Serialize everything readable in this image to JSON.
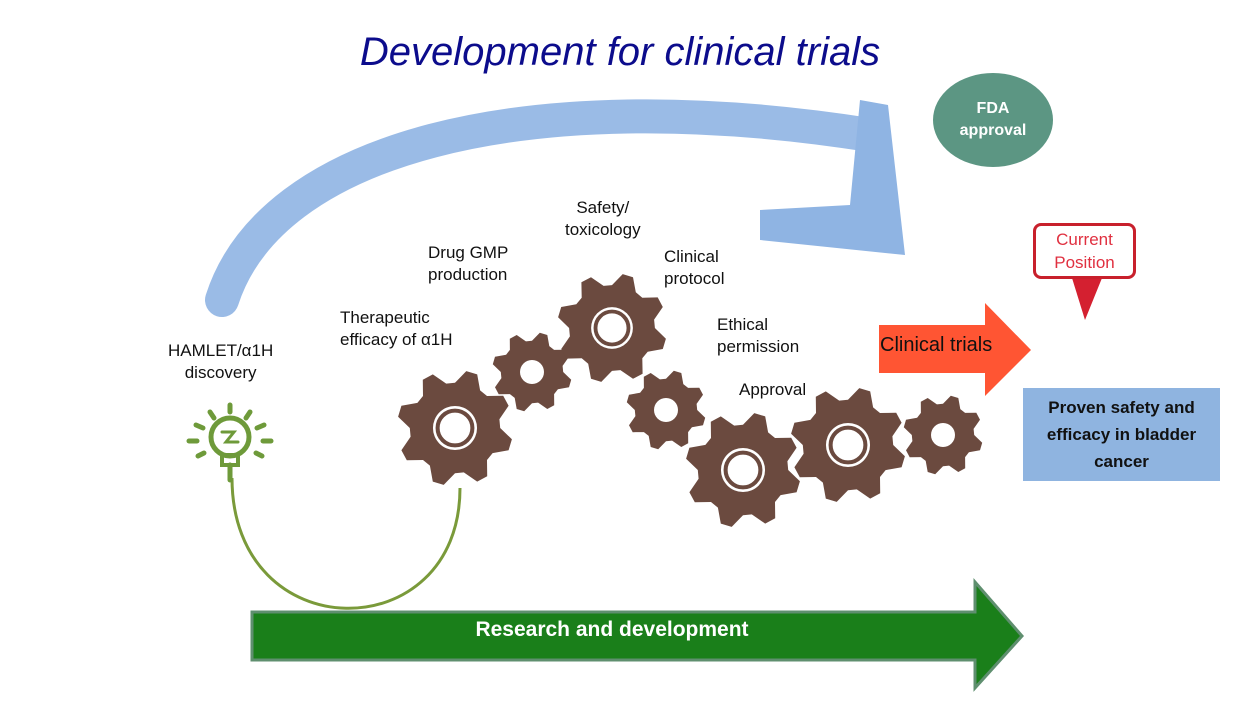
{
  "title": "Development for clinical trials",
  "fda": {
    "line1": "FDA",
    "line2": "approval",
    "color": "#5c9683"
  },
  "current_position": {
    "line1": "Current",
    "line2": "Position",
    "color": "#c8202c"
  },
  "clinical_trials": {
    "label": "Clinical trials",
    "color": "#ff5533"
  },
  "proven": {
    "line1": "Proven safety and",
    "line2": "efficacy in bladder",
    "line3": "cancer",
    "color": "#8fb4e0"
  },
  "research": {
    "label": "Research and development",
    "color": "#1a7f1a"
  },
  "steps": {
    "discovery": {
      "line1": "HAMLET/α1H",
      "line2": "discovery"
    },
    "therapeutic": {
      "line1": "Therapeutic",
      "line2": "efficacy of α1H"
    },
    "gmp": {
      "line1": "Drug GMP",
      "line2": "production"
    },
    "safety": {
      "line1": "Safety/",
      "line2": "toxicology"
    },
    "protocol": {
      "line1": "Clinical",
      "line2": "protocol"
    },
    "ethical": {
      "line1": "Ethical",
      "line2": "permission"
    },
    "approval": {
      "line1": "Approval"
    }
  },
  "icons": {
    "bulb": "lightbulb-icon",
    "gear": "gear-icon"
  },
  "colors": {
    "gear": "#6b4a3f",
    "bulb": "#6e9a3a",
    "blue_arrow": "#8fb4e3",
    "title": "#0c0c8c"
  }
}
